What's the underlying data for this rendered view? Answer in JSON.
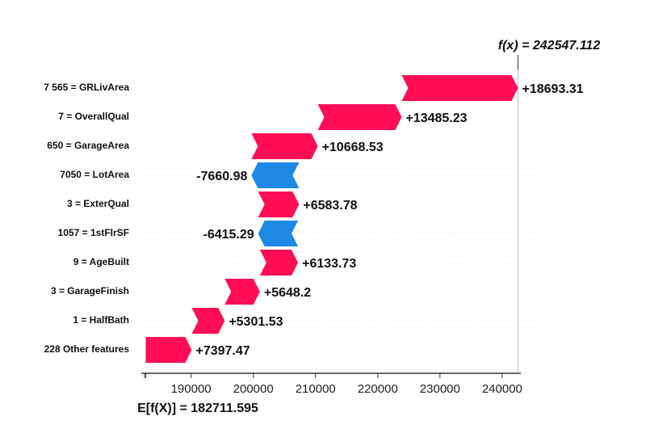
{
  "chart_data": {
    "type": "waterfall",
    "features": [
      "7 565 = GRLivArea",
      "7 = OverallQual",
      "650 = GarageArea",
      "7050 = LotArea",
      "3 = ExterQual",
      "1057 = 1stFlrSF",
      "9 = AgeBuilt",
      "3 = GarageFinish",
      "1 = HalfBath",
      "228 Other features"
    ],
    "values": [
      18693.31,
      13485.23,
      10668.53,
      -7660.98,
      6583.78,
      -6415.29,
      6133.73,
      5648.2,
      5301.53,
      7397.47
    ],
    "value_labels": [
      "+18693.31",
      "+13485.23",
      "+10668.53",
      "-7660.98",
      "+6583.78",
      "-6415.29",
      "+6133.73",
      "+5648.2",
      "+5301.53",
      "+7397.47"
    ],
    "base_value": 182711.595,
    "base_label": "E[f(X)] = 182711.595",
    "output_value": 242547.112,
    "output_label": "f(x) = 242547.112",
    "positive_color": "#ff0d57",
    "negative_color": "#1e88e5",
    "xlim": [
      182000,
      243000
    ],
    "xticks": [
      190000,
      200000,
      210000,
      220000,
      230000,
      240000
    ]
  }
}
